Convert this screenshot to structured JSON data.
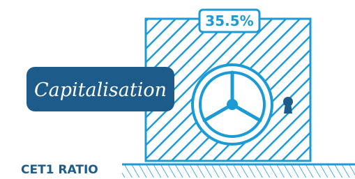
{
  "badge": {
    "text": "35.5%"
  },
  "label": {
    "text": "Capitalisation"
  },
  "caption": {
    "text": "CET1 RATIO"
  }
}
